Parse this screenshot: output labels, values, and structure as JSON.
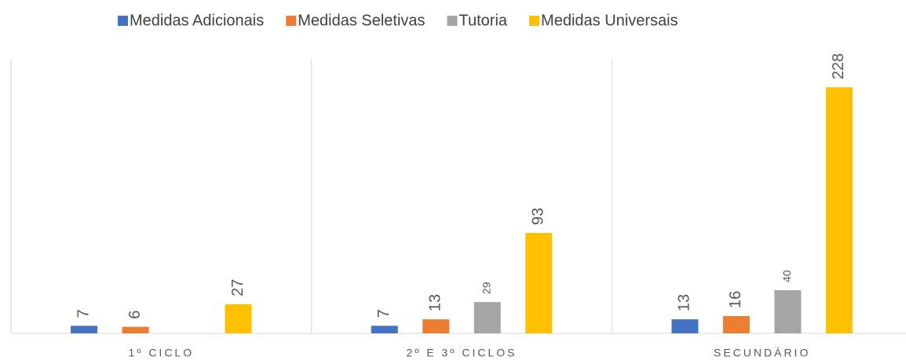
{
  "chart_data": {
    "type": "bar",
    "categories": [
      "1º CICLO",
      "2º E 3º CICLOS",
      "SECUNDÁRIO"
    ],
    "series": [
      {
        "name": "Medidas Adicionais",
        "color": "#4472c4",
        "values": [
          7,
          7,
          13
        ]
      },
      {
        "name": "Medidas Seletivas",
        "color": "#ed7d31",
        "values": [
          6,
          13,
          16
        ]
      },
      {
        "name": "Tutoria",
        "color": "#a5a5a5",
        "values": [
          null,
          29,
          40
        ]
      },
      {
        "name": "Medidas Universais",
        "color": "#ffc000",
        "values": [
          27,
          93,
          228
        ]
      }
    ],
    "ylim": [
      0,
      250
    ],
    "legend": "top"
  }
}
